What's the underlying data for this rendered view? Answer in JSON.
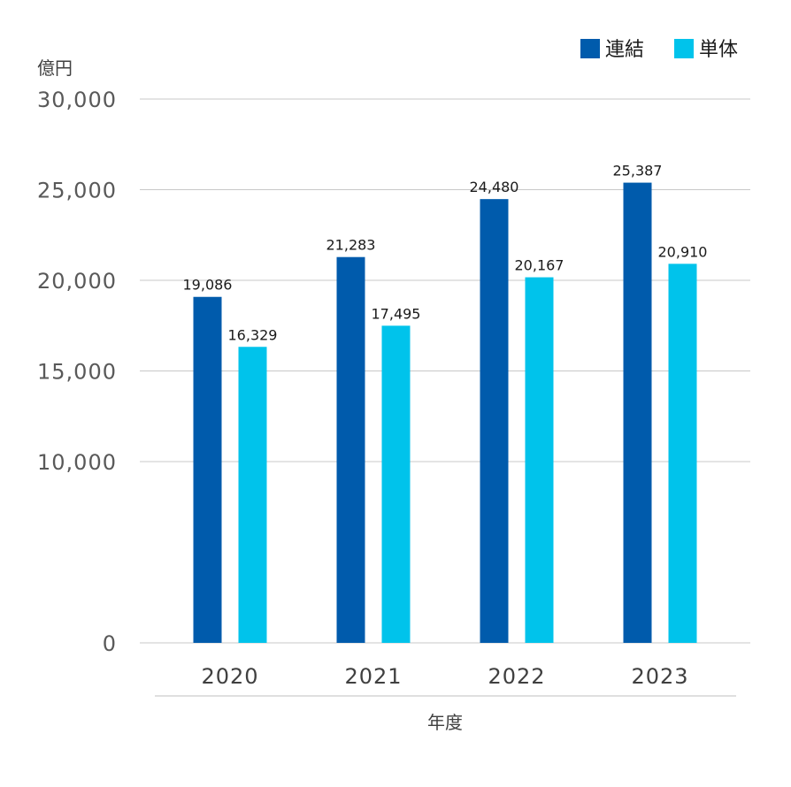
{
  "chart_data": {
    "type": "bar",
    "ylabel": "億円",
    "xlabel": "年度",
    "categories": [
      "2020",
      "2021",
      "2022",
      "2023"
    ],
    "series": [
      {
        "name": "連結",
        "color": "#005bac",
        "values": [
          19086,
          21283,
          24480,
          25387
        ],
        "labels": [
          "19,086",
          "21,283",
          "24,480",
          "25,387"
        ]
      },
      {
        "name": "単体",
        "color": "#00c3eb",
        "values": [
          16329,
          17495,
          20167,
          20910
        ],
        "labels": [
          "16,329",
          "17,495",
          "20,167",
          "20,910"
        ]
      }
    ],
    "ylim": [
      0,
      30000
    ],
    "yticks": [
      0,
      10000,
      15000,
      20000,
      25000,
      30000
    ],
    "ytick_labels": [
      "0",
      "10,000",
      "15,000",
      "20,000",
      "25,000",
      "30,000"
    ],
    "grid": true,
    "legend_position": "top-right"
  }
}
